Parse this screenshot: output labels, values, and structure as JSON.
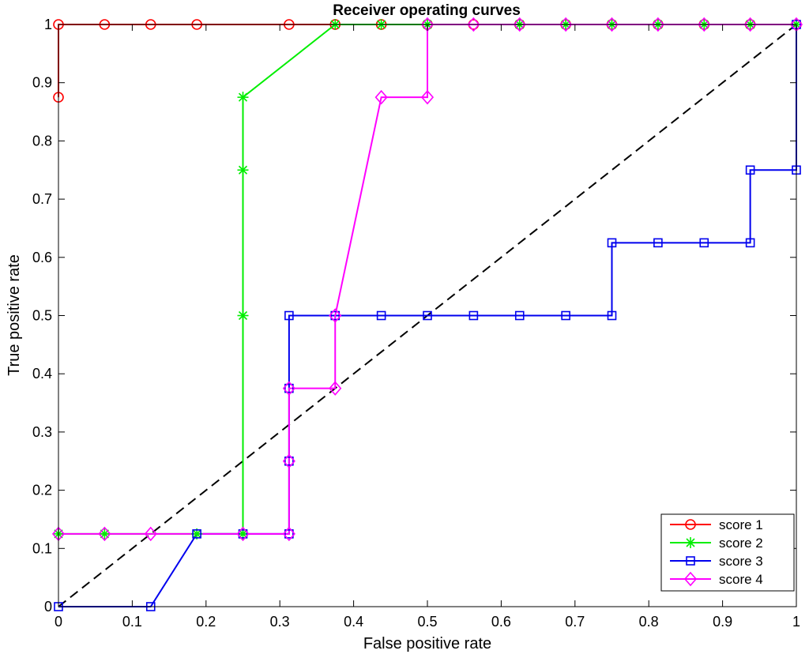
{
  "chart_data": {
    "type": "line",
    "title": "Receiver operating curves",
    "xlabel": "False positive rate",
    "ylabel": "True positive rate",
    "xlim": [
      0,
      1
    ],
    "ylim": [
      0,
      1
    ],
    "xticks": [
      "0",
      "0.1",
      "0.2",
      "0.3",
      "0.4",
      "0.5",
      "0.6",
      "0.7",
      "0.8",
      "0.9",
      "1"
    ],
    "yticks": [
      "0",
      "0.1",
      "0.2",
      "0.3",
      "0.4",
      "0.5",
      "0.6",
      "0.7",
      "0.8",
      "0.9",
      "1"
    ],
    "grid": false,
    "legend_position": "bottom-right",
    "reference_line": {
      "style": "dashed",
      "color": "#000000",
      "x": [
        0,
        1
      ],
      "y": [
        0,
        1
      ]
    },
    "series": [
      {
        "name": "score 1",
        "color": "#ff0000",
        "marker": "circle",
        "x": [
          0,
          0,
          0.0625,
          0.125,
          0.1875,
          0.3125,
          0.375,
          0.4375,
          0.5,
          0.5625,
          0.625,
          0.6875,
          0.75,
          0.8125,
          0.875,
          0.9375,
          1
        ],
        "y": [
          0.875,
          1,
          1,
          1,
          1,
          1,
          1,
          1,
          1,
          1,
          1,
          1,
          1,
          1,
          1,
          1,
          1
        ]
      },
      {
        "name": "score 2",
        "color": "#00ee00",
        "marker": "asterisk",
        "x": [
          0,
          0.0625,
          0.1875,
          0.25,
          0.25,
          0.25,
          0.25,
          0.375,
          0.4375,
          0.5,
          0.625,
          0.6875,
          0.75,
          0.8125,
          0.875,
          0.9375,
          1
        ],
        "y": [
          0.125,
          0.125,
          0.125,
          0.125,
          0.5,
          0.75,
          0.875,
          1,
          1,
          1,
          1,
          1,
          1,
          1,
          1,
          1,
          1
        ]
      },
      {
        "name": "score 3",
        "color": "#0000ee",
        "marker": "square",
        "x": [
          0,
          0.125,
          0.1875,
          0.25,
          0.3125,
          0.3125,
          0.3125,
          0.3125,
          0.375,
          0.4375,
          0.5,
          0.5625,
          0.625,
          0.6875,
          0.75,
          0.75,
          0.8125,
          0.875,
          0.9375,
          0.9375,
          1,
          1
        ],
        "y": [
          0,
          0,
          0.125,
          0.125,
          0.125,
          0.25,
          0.375,
          0.5,
          0.5,
          0.5,
          0.5,
          0.5,
          0.5,
          0.5,
          0.5,
          0.625,
          0.625,
          0.625,
          0.625,
          0.75,
          0.75,
          1
        ]
      },
      {
        "name": "score 4",
        "color": "#ff00ff",
        "marker": "diamond",
        "x": [
          0,
          0.0625,
          0.125,
          0.25,
          0.3125,
          0.3125,
          0.3125,
          0.375,
          0.375,
          0.4375,
          0.5,
          0.5,
          0.5625,
          0.625,
          0.6875,
          0.75,
          0.8125,
          0.875,
          0.9375,
          1
        ],
        "y": [
          0.125,
          0.125,
          0.125,
          0.125,
          0.125,
          0.25,
          0.375,
          0.375,
          0.5,
          0.875,
          0.875,
          1,
          1,
          1,
          1,
          1,
          1,
          1,
          1,
          1
        ]
      }
    ]
  }
}
